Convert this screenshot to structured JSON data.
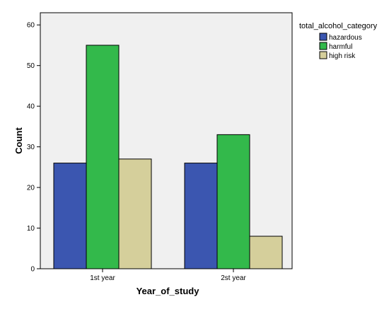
{
  "chart_data": {
    "type": "bar",
    "categories": [
      "1st year",
      "2st year"
    ],
    "series": [
      {
        "name": "hazardous",
        "values": [
          26,
          26
        ],
        "color": "#3b56b0"
      },
      {
        "name": "harmful",
        "values": [
          55,
          33
        ],
        "color": "#33b94b"
      },
      {
        "name": "high risk",
        "values": [
          27,
          8
        ],
        "color": "#d5cf9b"
      }
    ],
    "xlabel": "Year_of_study",
    "ylabel": "Count",
    "ylim": [
      0,
      63
    ],
    "yticks": [
      0,
      10,
      20,
      30,
      40,
      50,
      60
    ],
    "legend_title": "total_alcohol_category",
    "legend_position": "top-right",
    "plot_background": "#f0f0f0",
    "grid": false
  }
}
